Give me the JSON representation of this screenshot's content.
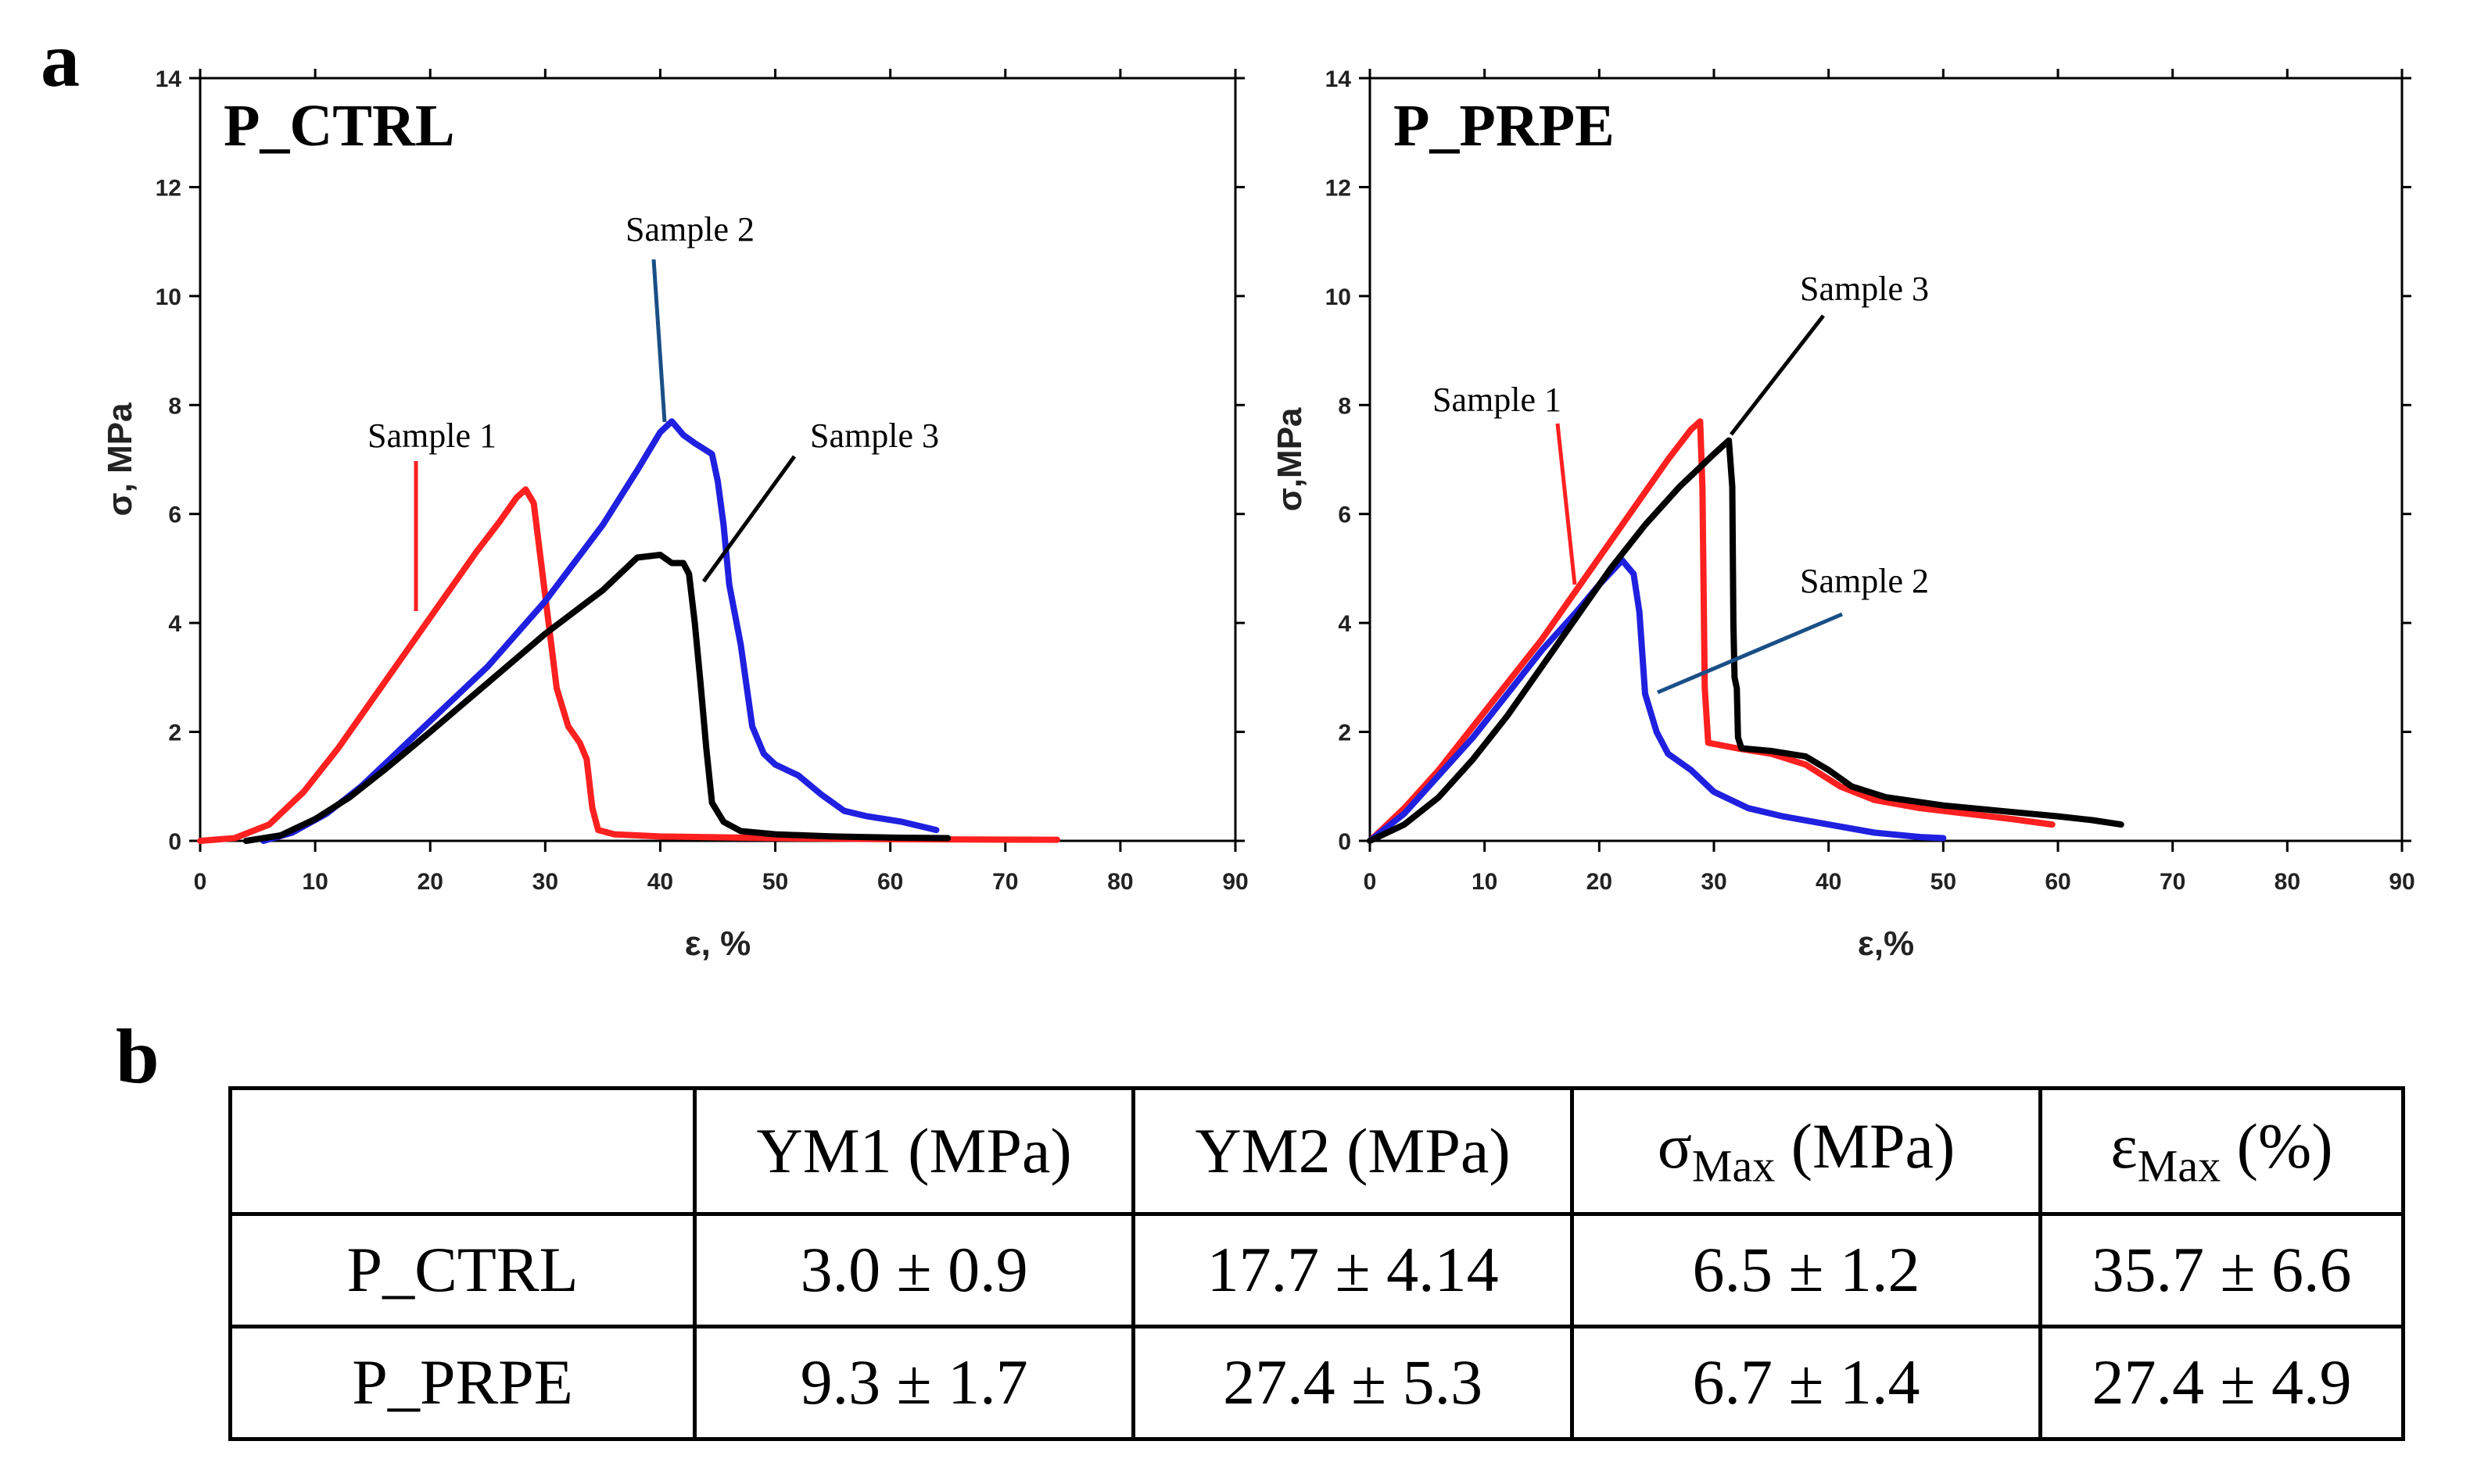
{
  "panel_labels": {
    "a": "a",
    "b": "b"
  },
  "chart_data": [
    {
      "type": "line",
      "title": "P_CTRL",
      "xlabel": "ε, %",
      "ylabel": "σ, MPa",
      "xlim": [
        0,
        90
      ],
      "ylim": [
        0,
        14
      ],
      "xticks": [
        0,
        10,
        20,
        30,
        40,
        50,
        60,
        70,
        80,
        90
      ],
      "yticks": [
        0,
        2,
        4,
        6,
        8,
        10,
        12,
        14
      ],
      "grid": false,
      "series": [
        {
          "name": "Sample 1",
          "color": "#ff2020",
          "points": [
            [
              0,
              0
            ],
            [
              3,
              0.05
            ],
            [
              6,
              0.3
            ],
            [
              9,
              0.9
            ],
            [
              12,
              1.7
            ],
            [
              15,
              2.6
            ],
            [
              18,
              3.5
            ],
            [
              21,
              4.4
            ],
            [
              24,
              5.3
            ],
            [
              26,
              5.85
            ],
            [
              27.5,
              6.3
            ],
            [
              28.3,
              6.45
            ],
            [
              29,
              6.2
            ],
            [
              30,
              4.5
            ],
            [
              31,
              2.8
            ],
            [
              32,
              2.1
            ],
            [
              33,
              1.8
            ],
            [
              33.6,
              1.5
            ],
            [
              34.1,
              0.6
            ],
            [
              34.6,
              0.2
            ],
            [
              36,
              0.12
            ],
            [
              40,
              0.08
            ],
            [
              50,
              0.05
            ],
            [
              60,
              0.03
            ],
            [
              74.5,
              0.02
            ]
          ]
        },
        {
          "name": "Sample 2",
          "color": "#2020e0",
          "points": [
            [
              5.5,
              0
            ],
            [
              8,
              0.15
            ],
            [
              11,
              0.5
            ],
            [
              14,
              1.0
            ],
            [
              17,
              1.6
            ],
            [
              20,
              2.2
            ],
            [
              25,
              3.2
            ],
            [
              30,
              4.4
            ],
            [
              35,
              5.8
            ],
            [
              38,
              6.8
            ],
            [
              40,
              7.5
            ],
            [
              41,
              7.7
            ],
            [
              42,
              7.45
            ],
            [
              43,
              7.3
            ],
            [
              44.5,
              7.1
            ],
            [
              45,
              6.6
            ],
            [
              45.5,
              5.8
            ],
            [
              46,
              4.7
            ],
            [
              47,
              3.6
            ],
            [
              48,
              2.1
            ],
            [
              49,
              1.6
            ],
            [
              50,
              1.4
            ],
            [
              52,
              1.2
            ],
            [
              54,
              0.85
            ],
            [
              56,
              0.55
            ],
            [
              58,
              0.45
            ],
            [
              61,
              0.35
            ],
            [
              64,
              0.2
            ]
          ]
        },
        {
          "name": "Sample 3",
          "color": "#000000",
          "points": [
            [
              4,
              0
            ],
            [
              7,
              0.1
            ],
            [
              10,
              0.4
            ],
            [
              13,
              0.8
            ],
            [
              16,
              1.3
            ],
            [
              20,
              2.0
            ],
            [
              25,
              2.9
            ],
            [
              30,
              3.8
            ],
            [
              35,
              4.6
            ],
            [
              38,
              5.2
            ],
            [
              40,
              5.25
            ],
            [
              41,
              5.1
            ],
            [
              42,
              5.1
            ],
            [
              42.5,
              4.9
            ],
            [
              43,
              4.0
            ],
            [
              43.5,
              2.9
            ],
            [
              44,
              1.7
            ],
            [
              44.5,
              0.7
            ],
            [
              45.5,
              0.35
            ],
            [
              47,
              0.18
            ],
            [
              50,
              0.12
            ],
            [
              55,
              0.08
            ],
            [
              60,
              0.06
            ],
            [
              65,
              0.05
            ]
          ]
        }
      ],
      "annotations": [
        "Sample 1",
        "Sample 2",
        "Sample 3"
      ]
    },
    {
      "type": "line",
      "title": "P_PRPE",
      "xlabel": "ε,%",
      "ylabel": "σ,MPa",
      "xlim": [
        0,
        90
      ],
      "ylim": [
        0,
        14
      ],
      "xticks": [
        0,
        10,
        20,
        30,
        40,
        50,
        60,
        70,
        80,
        90
      ],
      "yticks": [
        0,
        2,
        4,
        6,
        8,
        10,
        12,
        14
      ],
      "grid": false,
      "series": [
        {
          "name": "Sample 1",
          "color": "#ff2020",
          "points": [
            [
              0,
              0
            ],
            [
              3,
              0.6
            ],
            [
              6,
              1.3
            ],
            [
              9,
              2.1
            ],
            [
              12,
              2.9
            ],
            [
              15,
              3.7
            ],
            [
              18,
              4.6
            ],
            [
              21,
              5.5
            ],
            [
              24,
              6.4
            ],
            [
              26,
              7.0
            ],
            [
              28,
              7.55
            ],
            [
              28.8,
              7.7
            ],
            [
              29,
              6.5
            ],
            [
              29.2,
              2.8
            ],
            [
              29.5,
              1.8
            ],
            [
              32,
              1.7
            ],
            [
              35,
              1.6
            ],
            [
              38,
              1.4
            ],
            [
              41,
              1.0
            ],
            [
              44,
              0.75
            ],
            [
              48,
              0.6
            ],
            [
              52,
              0.5
            ],
            [
              56,
              0.4
            ],
            [
              59.5,
              0.3
            ]
          ]
        },
        {
          "name": "Sample 2",
          "color": "#2020e0",
          "points": [
            [
              0,
              0
            ],
            [
              3,
              0.5
            ],
            [
              6,
              1.2
            ],
            [
              9,
              1.9
            ],
            [
              12,
              2.7
            ],
            [
              15,
              3.5
            ],
            [
              18,
              4.2
            ],
            [
              20,
              4.7
            ],
            [
              22,
              5.15
            ],
            [
              23,
              4.9
            ],
            [
              23.5,
              4.2
            ],
            [
              24,
              2.7
            ],
            [
              25,
              2.0
            ],
            [
              26,
              1.6
            ],
            [
              28,
              1.3
            ],
            [
              30,
              0.9
            ],
            [
              33,
              0.6
            ],
            [
              36,
              0.45
            ],
            [
              40,
              0.3
            ],
            [
              44,
              0.15
            ],
            [
              48,
              0.07
            ],
            [
              50,
              0.05
            ]
          ]
        },
        {
          "name": "Sample 3",
          "color": "#000000",
          "points": [
            [
              0,
              0
            ],
            [
              3,
              0.3
            ],
            [
              6,
              0.8
            ],
            [
              9,
              1.5
            ],
            [
              12,
              2.3
            ],
            [
              15,
              3.2
            ],
            [
              18,
              4.1
            ],
            [
              21,
              5.0
            ],
            [
              24,
              5.8
            ],
            [
              27,
              6.5
            ],
            [
              30,
              7.1
            ],
            [
              31.3,
              7.35
            ],
            [
              31.6,
              6.5
            ],
            [
              31.7,
              4.0
            ],
            [
              31.8,
              3.0
            ],
            [
              32,
              2.8
            ],
            [
              32.1,
              1.9
            ],
            [
              32.4,
              1.7
            ],
            [
              35,
              1.65
            ],
            [
              38,
              1.55
            ],
            [
              40,
              1.3
            ],
            [
              42,
              1.0
            ],
            [
              45,
              0.8
            ],
            [
              50,
              0.65
            ],
            [
              55,
              0.55
            ],
            [
              60,
              0.45
            ],
            [
              63,
              0.38
            ],
            [
              65.5,
              0.3
            ]
          ]
        }
      ],
      "annotations": [
        "Sample 1",
        "Sample 2",
        "Sample 3"
      ]
    }
  ],
  "table": {
    "headers": [
      "",
      "YM1 (MPa)",
      "YM2 (MPa)",
      "σ",
      "ε"
    ],
    "header_subs": {
      "sigma_sub": "Max",
      "sigma_unit": " (MPa)",
      "eps_sub": "Max",
      "eps_unit": " (%)"
    },
    "rows": [
      [
        "P_CTRL",
        "3.0 ± 0.9",
        "17.7 ± 4.14",
        "6.5 ± 1.2",
        "35.7 ± 6.6"
      ],
      [
        "P_PRPE",
        "9.3 ± 1.7",
        "27.4 ± 5.3",
        "6.7 ± 1.4",
        "27.4 ± 4.9"
      ]
    ]
  }
}
